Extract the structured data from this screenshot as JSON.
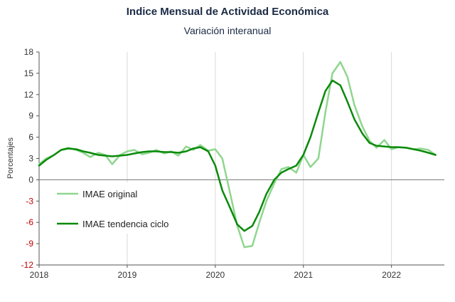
{
  "chart_data": {
    "type": "line",
    "title": "Indice Mensual de  Actividad Económica",
    "subtitle": "Variación interanual",
    "ylabel": "Porcentajes",
    "xlabel": "",
    "ylim": [
      -12,
      18
    ],
    "yticks": [
      18,
      15,
      12,
      9,
      6,
      3,
      0,
      -3,
      -6,
      -9,
      -12
    ],
    "xlim": [
      2018,
      2022.6
    ],
    "xticks": [
      "2018",
      "2019",
      "2020",
      "2021",
      "2022"
    ],
    "grid": "vertical",
    "legend_position": "left-middle",
    "series": [
      {
        "name": "IMAE original",
        "color": "#8fd68f",
        "x": [
          2018.0,
          2018.08,
          2018.17,
          2018.25,
          2018.33,
          2018.42,
          2018.5,
          2018.58,
          2018.67,
          2018.75,
          2018.83,
          2018.92,
          2019.0,
          2019.08,
          2019.17,
          2019.25,
          2019.33,
          2019.42,
          2019.5,
          2019.58,
          2019.67,
          2019.75,
          2019.83,
          2019.92,
          2020.0,
          2020.08,
          2020.17,
          2020.25,
          2020.33,
          2020.42,
          2020.5,
          2020.58,
          2020.67,
          2020.75,
          2020.83,
          2020.92,
          2021.0,
          2021.08,
          2021.17,
          2021.25,
          2021.33,
          2021.42,
          2021.5,
          2021.58,
          2021.67,
          2021.75,
          2021.83,
          2021.92,
          2022.0,
          2022.08,
          2022.17,
          2022.25,
          2022.33,
          2022.42,
          2022.5
        ],
        "values": [
          2.2,
          3.0,
          3.5,
          4.2,
          4.5,
          4.2,
          3.8,
          3.2,
          3.8,
          3.5,
          2.2,
          3.5,
          4.0,
          4.2,
          3.6,
          3.8,
          4.2,
          3.7,
          4.0,
          3.4,
          4.7,
          4.2,
          4.9,
          4.1,
          4.3,
          3.0,
          -2.0,
          -6.5,
          -9.5,
          -9.3,
          -6.0,
          -3.0,
          -0.5,
          1.5,
          1.8,
          1.0,
          3.5,
          1.8,
          3.0,
          9.5,
          15.0,
          16.6,
          14.5,
          10.5,
          7.5,
          5.5,
          4.5,
          5.6,
          4.3,
          4.6,
          4.5,
          4.3,
          4.4,
          4.2,
          3.5
        ]
      },
      {
        "name": "IMAE tendencia ciclo",
        "color": "#0a8a0a",
        "x": [
          2018.0,
          2018.08,
          2018.17,
          2018.25,
          2018.33,
          2018.42,
          2018.5,
          2018.58,
          2018.67,
          2018.75,
          2018.83,
          2018.92,
          2019.0,
          2019.08,
          2019.17,
          2019.25,
          2019.33,
          2019.42,
          2019.5,
          2019.58,
          2019.67,
          2019.75,
          2019.83,
          2019.92,
          2020.0,
          2020.08,
          2020.17,
          2020.25,
          2020.33,
          2020.42,
          2020.5,
          2020.58,
          2020.67,
          2020.75,
          2020.83,
          2020.92,
          2021.0,
          2021.08,
          2021.17,
          2021.25,
          2021.33,
          2021.42,
          2021.5,
          2021.58,
          2021.67,
          2021.75,
          2021.83,
          2021.92,
          2022.0,
          2022.08,
          2022.17,
          2022.25,
          2022.33,
          2022.42,
          2022.5
        ],
        "values": [
          2.0,
          2.8,
          3.5,
          4.2,
          4.4,
          4.3,
          4.0,
          3.8,
          3.5,
          3.4,
          3.3,
          3.4,
          3.5,
          3.7,
          3.9,
          4.0,
          4.0,
          3.9,
          3.9,
          3.8,
          4.0,
          4.4,
          4.6,
          4.0,
          2.0,
          -1.5,
          -4.0,
          -6.3,
          -7.2,
          -6.5,
          -4.5,
          -2.0,
          0.0,
          1.0,
          1.5,
          2.0,
          3.5,
          6.0,
          9.5,
          12.5,
          14.0,
          13.3,
          11.0,
          8.5,
          6.5,
          5.2,
          4.8,
          4.7,
          4.6,
          4.6,
          4.5,
          4.3,
          4.1,
          3.8,
          3.5
        ]
      }
    ]
  }
}
